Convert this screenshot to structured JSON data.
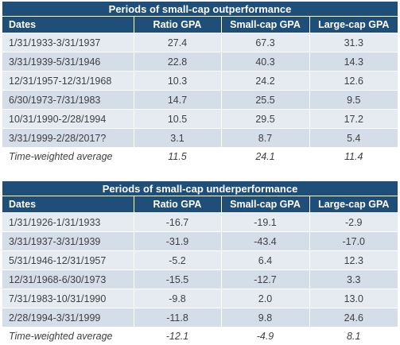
{
  "tables": [
    {
      "title": "Periods of small-cap outperformance",
      "headers": [
        "Dates",
        "Ratio GPA",
        "Small-cap GPA",
        "Large-cap GPA"
      ],
      "rows": [
        [
          "1/31/1933-3/31/1937",
          "27.4",
          "67.3",
          "31.3"
        ],
        [
          "3/31/1939-5/31/1946",
          "22.8",
          "40.3",
          "14.3"
        ],
        [
          "12/31/1957-12/31/1968",
          "10.3",
          "24.2",
          "12.6"
        ],
        [
          "6/30/1973-7/31/1983",
          "14.7",
          "25.5",
          "9.5"
        ],
        [
          "10/31/1990-2/28/1994",
          "10.5",
          "29.5",
          "17.2"
        ],
        [
          "3/31/1999-2/28/2017?",
          "3.1",
          "8.7",
          "5.4"
        ]
      ],
      "summary": [
        "Time-weighted average",
        "11.5",
        "24.1",
        "11.4"
      ]
    },
    {
      "title": "Periods of small-cap underperformance",
      "headers": [
        "Dates",
        "Ratio GPA",
        "Small-cap GPA",
        "Large-cap GPA"
      ],
      "rows": [
        [
          "1/31/1926-1/31/1933",
          "-16.7",
          "-19.1",
          "-2.9"
        ],
        [
          "3/31/1937-3/31/1939",
          "-31.9",
          "-43.4",
          "-17.0"
        ],
        [
          "5/31/1946-12/31/1957",
          "-5.2",
          "6.4",
          "12.3"
        ],
        [
          "12/31/1968-6/30/1973",
          "-15.5",
          "-12.7",
          "3.3"
        ],
        [
          "7/31/1983-10/31/1990",
          "-9.8",
          "2.0",
          "13.0"
        ],
        [
          "2/28/1994-3/31/1999",
          "-11.8",
          "9.8",
          "24.6"
        ]
      ],
      "summary": [
        "Time-weighted average",
        "-12.1",
        "-4.9",
        "8.1"
      ]
    }
  ],
  "colors": {
    "header_bg": "#1f4e78",
    "row_light": "#e6ebf1",
    "row_dark": "#d5dde8"
  }
}
